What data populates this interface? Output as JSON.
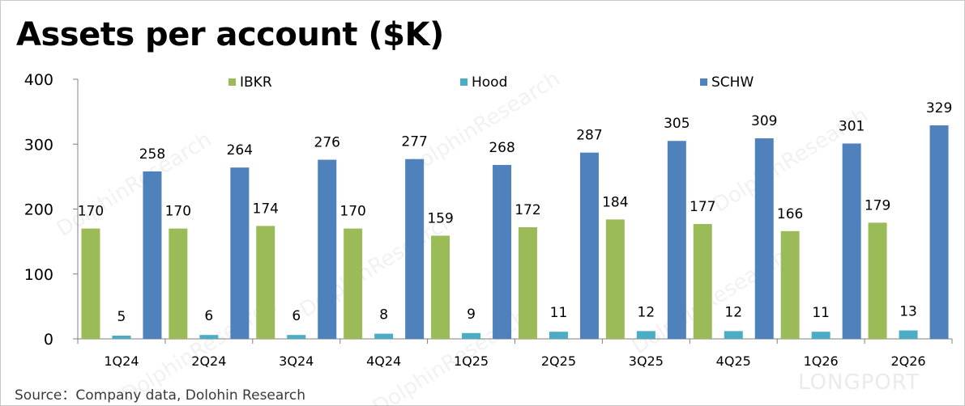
{
  "title": "Assets per account ($K)",
  "source": "Source：Company data,  Dolohin Research",
  "watermark": {
    "text": "DolphinResearch",
    "brand": "LONGPORT"
  },
  "colors": {
    "IBKR": "#9bbb59",
    "Hood": "#4bacc6",
    "SCHW": "#4f81bd",
    "axis": "#808080"
  },
  "chart_data": {
    "type": "bar",
    "title": "Assets per account ($K)",
    "categories": [
      "1Q24",
      "2Q24",
      "3Q24",
      "4Q24",
      "1Q25",
      "2Q25",
      "3Q25",
      "4Q25",
      "1Q26",
      "2Q26"
    ],
    "series": [
      {
        "name": "IBKR",
        "values": [
          170,
          170,
          174,
          170,
          159,
          172,
          184,
          177,
          166,
          179
        ]
      },
      {
        "name": "Hood",
        "values": [
          5,
          6,
          6,
          8,
          9,
          11,
          12,
          12,
          11,
          13
        ]
      },
      {
        "name": "SCHW",
        "values": [
          258,
          264,
          276,
          277,
          268,
          287,
          305,
          309,
          301,
          329
        ]
      }
    ],
    "ylim": [
      0,
      400
    ],
    "yticks": [
      "0",
      "100",
      "200",
      "300",
      "400"
    ],
    "grid": false,
    "legend": "top"
  }
}
